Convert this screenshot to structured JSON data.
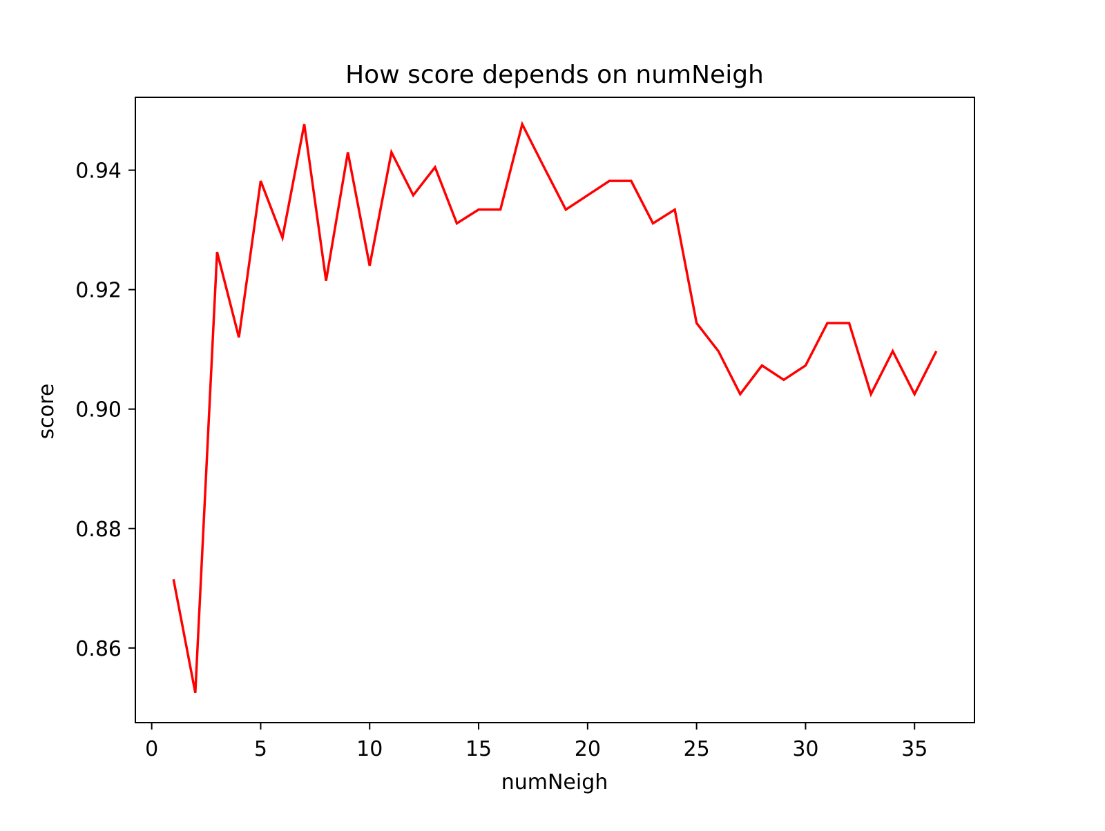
{
  "chart_data": {
    "type": "line",
    "title": "How score depends on numNeigh",
    "xlabel": "numNeigh",
    "ylabel": "score",
    "xlim": [
      -0.75,
      37.75
    ],
    "ylim": [
      0.8475,
      0.9522
    ],
    "xticks": [
      0,
      5,
      10,
      15,
      20,
      25,
      30,
      35
    ],
    "xtick_labels": [
      "0",
      "5",
      "10",
      "15",
      "20",
      "25",
      "30",
      "35"
    ],
    "yticks": [
      0.86,
      0.88,
      0.9,
      0.92,
      0.94
    ],
    "ytick_labels": [
      "0.86",
      "0.88",
      "0.90",
      "0.92",
      "0.94"
    ],
    "grid": false,
    "legend": "none",
    "series": [
      {
        "color": "#ff0000",
        "x": [
          1,
          2,
          3,
          4,
          5,
          6,
          7,
          8,
          9,
          10,
          11,
          12,
          13,
          14,
          15,
          16,
          17,
          18,
          19,
          20,
          21,
          22,
          23,
          24,
          25,
          26,
          27,
          28,
          29,
          30,
          31,
          32,
          33,
          34,
          35,
          36
        ],
        "y": [
          0.8715,
          0.8525,
          0.9263,
          0.912,
          0.9382,
          0.9287,
          0.9477,
          0.9215,
          0.943,
          0.924,
          0.943,
          0.9358,
          0.9405,
          0.9311,
          0.9334,
          0.9334,
          0.9477,
          0.9405,
          0.9334,
          0.9358,
          0.9382,
          0.9382,
          0.9311,
          0.9334,
          0.9144,
          0.9097,
          0.9025,
          0.9073,
          0.9049,
          0.9073,
          0.9144,
          0.9144,
          0.9025,
          0.9097,
          0.9025,
          0.9097
        ]
      }
    ]
  }
}
